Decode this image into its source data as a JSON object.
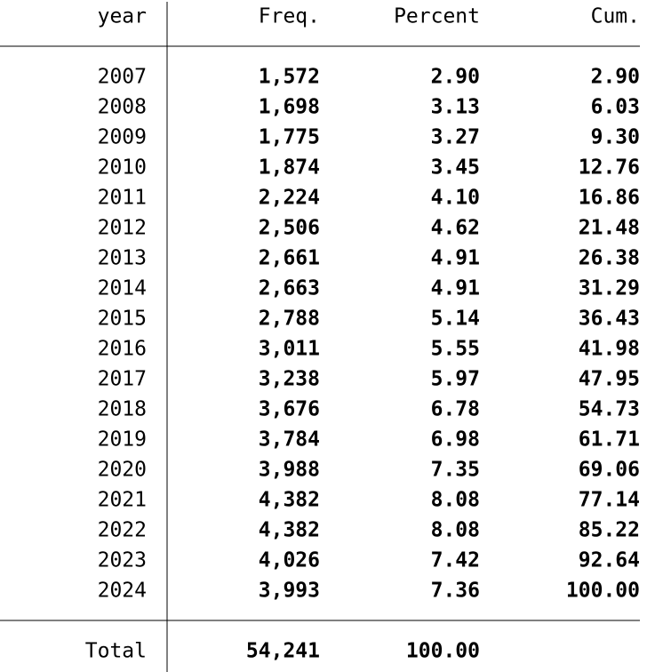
{
  "table": {
    "header": [
      "year",
      "Freq.",
      "Percent",
      "Cum."
    ],
    "rows": [
      [
        "2007",
        "1,572",
        "2.90",
        "2.90"
      ],
      [
        "2008",
        "1,698",
        "3.13",
        "6.03"
      ],
      [
        "2009",
        "1,775",
        "3.27",
        "9.30"
      ],
      [
        "2010",
        "1,874",
        "3.45",
        "12.76"
      ],
      [
        "2011",
        "2,224",
        "4.10",
        "16.86"
      ],
      [
        "2012",
        "2,506",
        "4.62",
        "21.48"
      ],
      [
        "2013",
        "2,661",
        "4.91",
        "26.38"
      ],
      [
        "2014",
        "2,663",
        "4.91",
        "31.29"
      ],
      [
        "2015",
        "2,788",
        "5.14",
        "36.43"
      ],
      [
        "2016",
        "3,011",
        "5.55",
        "41.98"
      ],
      [
        "2017",
        "3,238",
        "5.97",
        "47.95"
      ],
      [
        "2018",
        "3,676",
        "6.78",
        "54.73"
      ],
      [
        "2019",
        "3,784",
        "6.98",
        "61.71"
      ],
      [
        "2020",
        "3,988",
        "7.35",
        "69.06"
      ],
      [
        "2021",
        "4,382",
        "8.08",
        "77.14"
      ],
      [
        "2022",
        "4,382",
        "8.08",
        "85.22"
      ],
      [
        "2023",
        "4,026",
        "7.42",
        "92.64"
      ],
      [
        "2024",
        "3,993",
        "7.36",
        "100.00"
      ]
    ],
    "total": [
      "Total",
      "54,241",
      "100.00"
    ]
  }
}
